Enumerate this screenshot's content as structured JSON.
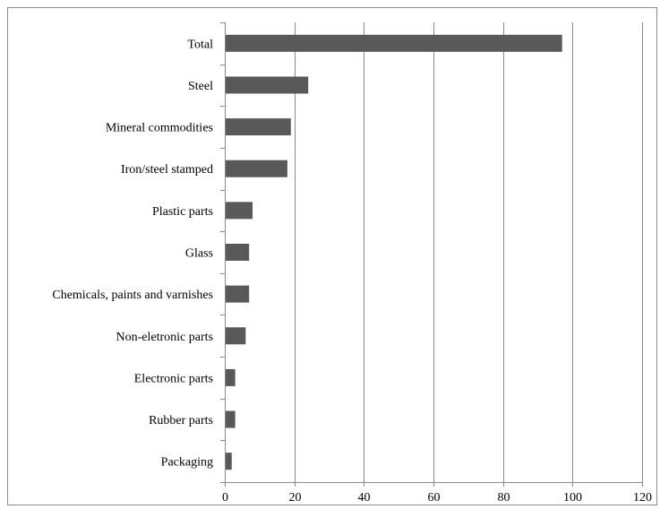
{
  "chart_data": {
    "type": "bar",
    "orientation": "horizontal",
    "title": "",
    "xlabel": "",
    "ylabel": "",
    "categories": [
      "Total",
      "Steel",
      "Mineral commodities",
      "Iron/steel stamped",
      "Plastic parts",
      "Glass",
      "Chemicals, paints and varnishes",
      "Non-eletronic parts",
      "Electronic parts",
      "Rubber parts",
      "Packaging"
    ],
    "values": [
      97,
      24,
      19,
      18,
      8,
      7,
      7,
      6,
      3,
      3,
      2
    ],
    "xlim": [
      0,
      120
    ],
    "x_ticks": [
      "0",
      "20",
      "40",
      "60",
      "80",
      "100",
      "120"
    ],
    "grid": "vertical",
    "legend": "none",
    "bar_color": "#595959"
  }
}
